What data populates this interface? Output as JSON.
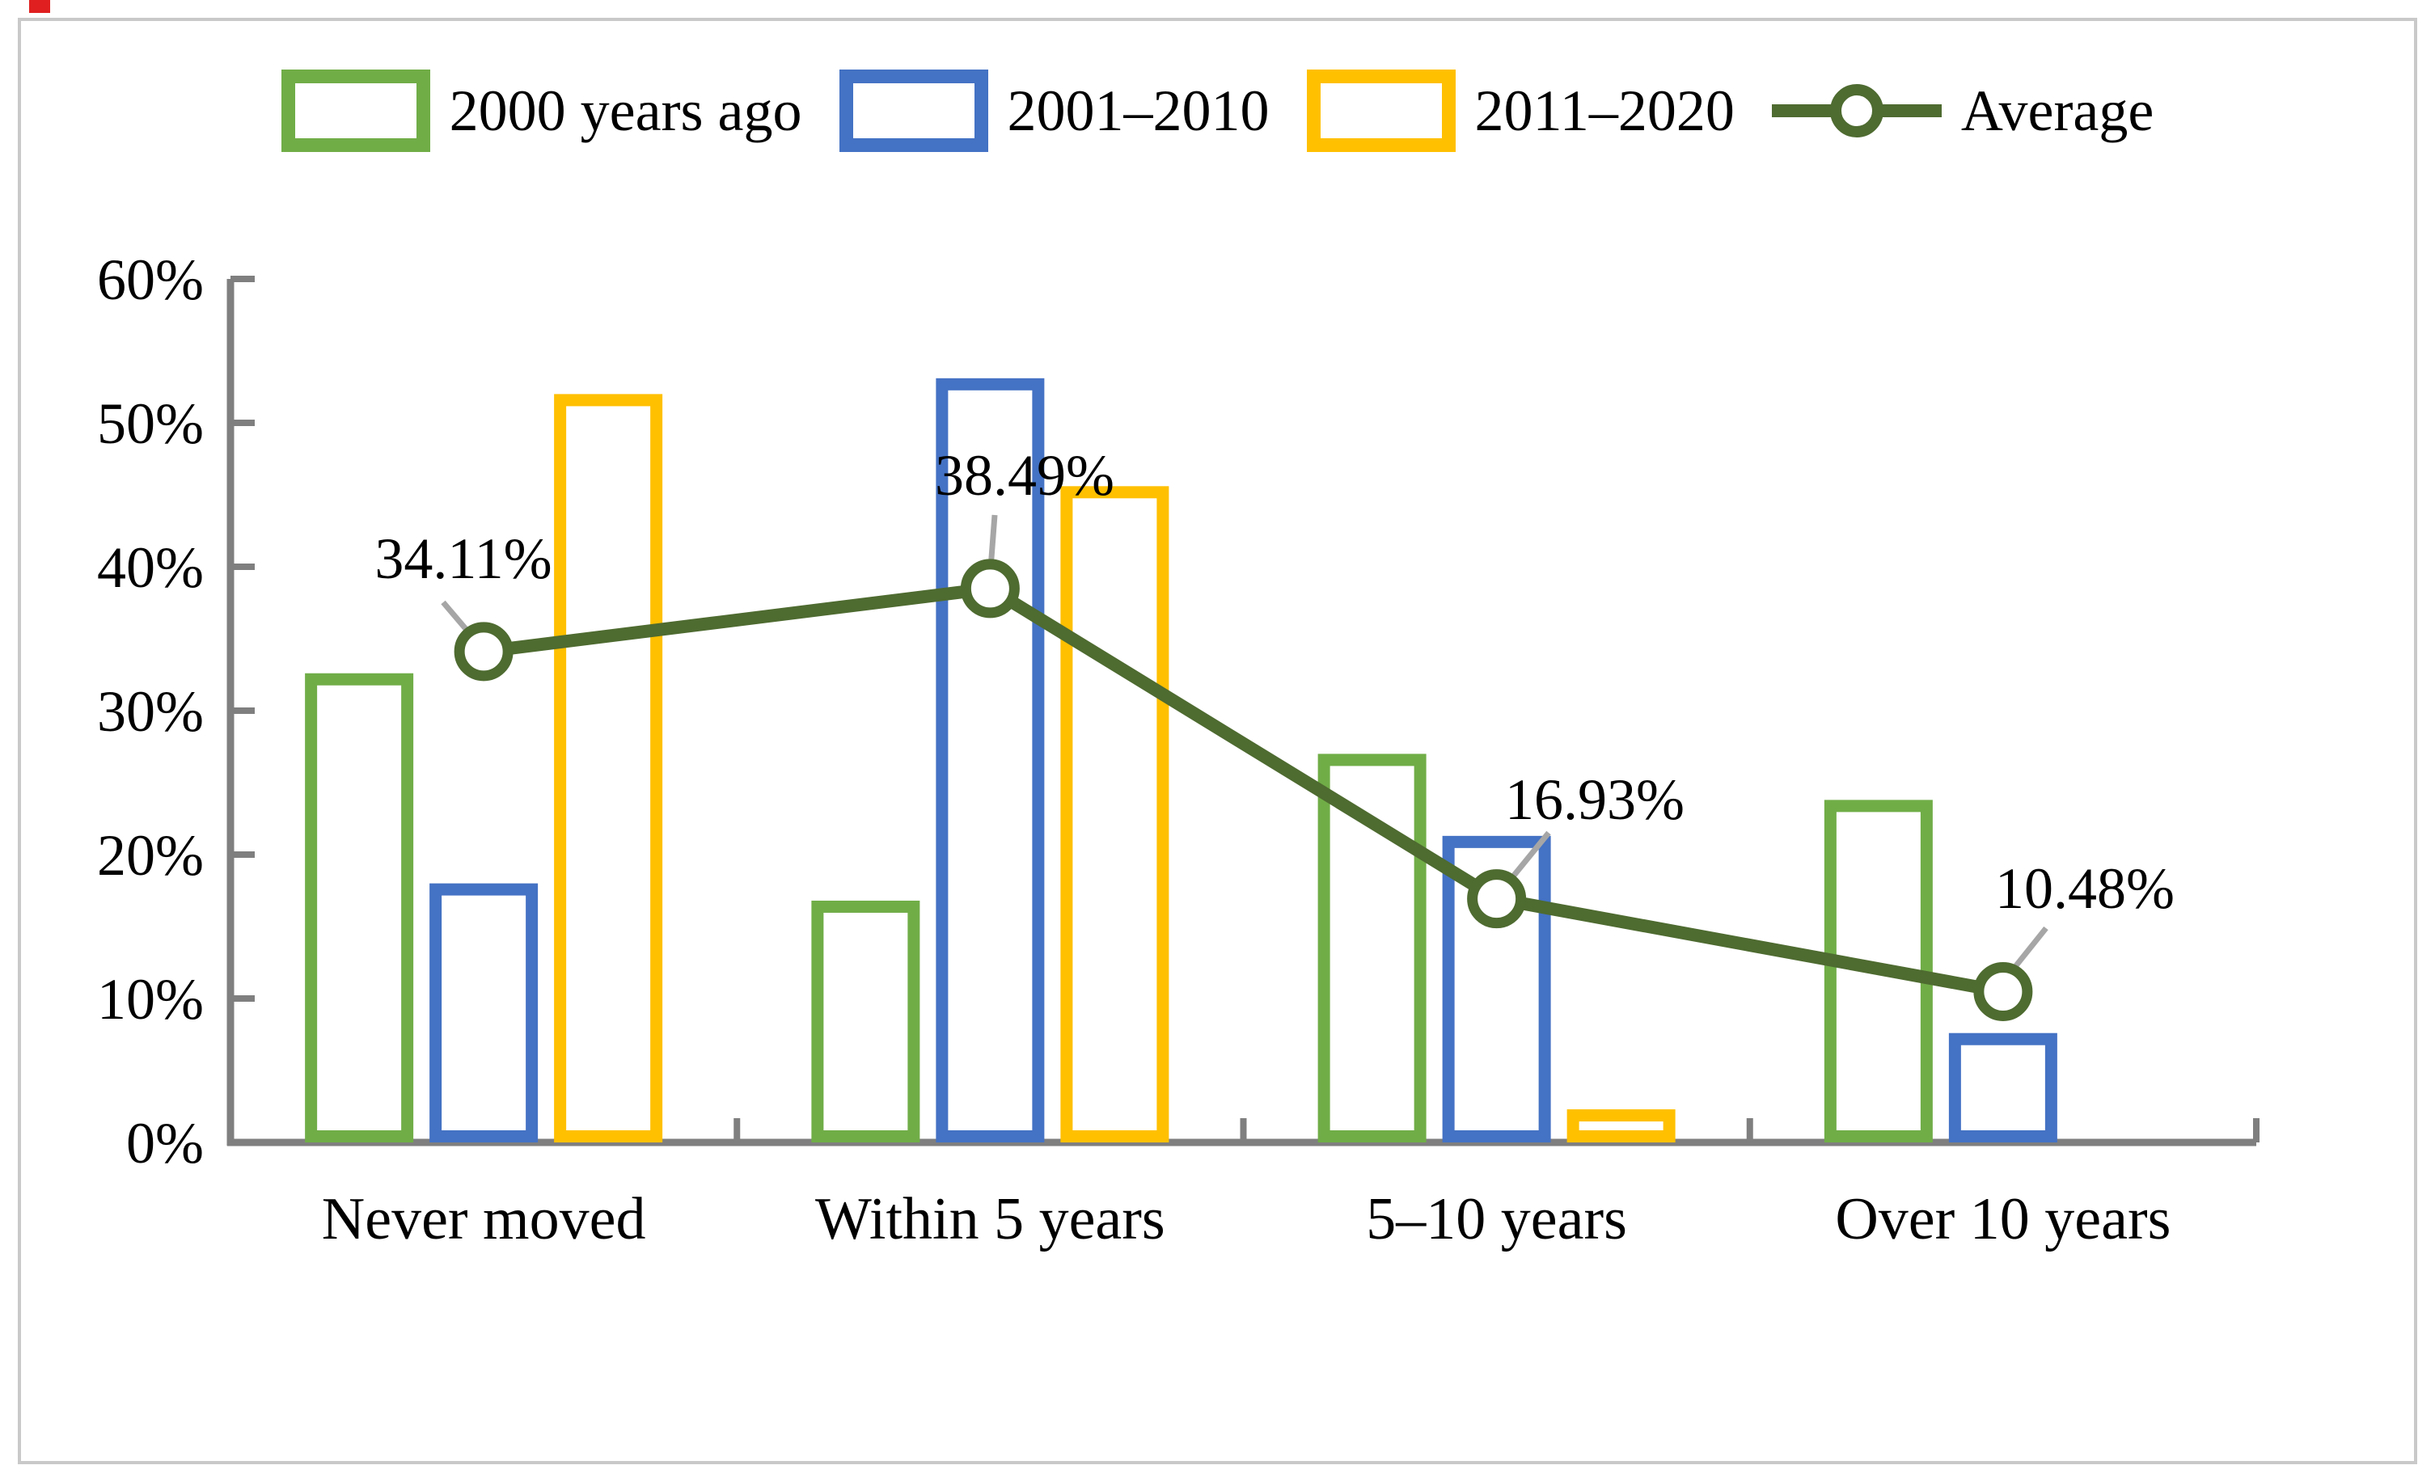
{
  "chart_data": {
    "type": "bar",
    "title": "",
    "categories": [
      "Never moved",
      "Within 5 years",
      "5–10 years",
      "Over 10 years"
    ],
    "series": [
      {
        "name": "2000 years ago",
        "color": "#70AD47",
        "values": [
          32.6,
          16.8,
          27.0,
          23.8
        ]
      },
      {
        "name": "2001–2010",
        "color": "#4472C4",
        "values": [
          18.0,
          53.1,
          21.3,
          7.6
        ]
      },
      {
        "name": "2011–2020",
        "color": "#FFC000",
        "values": [
          52.0,
          45.6,
          2.3,
          0
        ]
      }
    ],
    "line_series": {
      "name": "Average",
      "color": "#4E6B30",
      "values": [
        34.11,
        38.49,
        16.93,
        10.48
      ],
      "labels": [
        "34.11%",
        "38.49%",
        "16.93%",
        "10.48%"
      ]
    },
    "y_axis": {
      "min": 0,
      "max": 60,
      "tick_step": 10,
      "tick_labels": [
        "0%",
        "10%",
        "20%",
        "30%",
        "40%",
        "50%",
        "60%"
      ]
    },
    "x_axis": {
      "label": ""
    },
    "legend_position": "top",
    "grid": false,
    "bar_style": "white fill with colored outline",
    "colors": {
      "axis": "#7F7F7F",
      "leader_line": "#A6A6A6",
      "text": "#000000",
      "frame": "#C9C9C9",
      "corner_mark": "#E02020"
    }
  }
}
